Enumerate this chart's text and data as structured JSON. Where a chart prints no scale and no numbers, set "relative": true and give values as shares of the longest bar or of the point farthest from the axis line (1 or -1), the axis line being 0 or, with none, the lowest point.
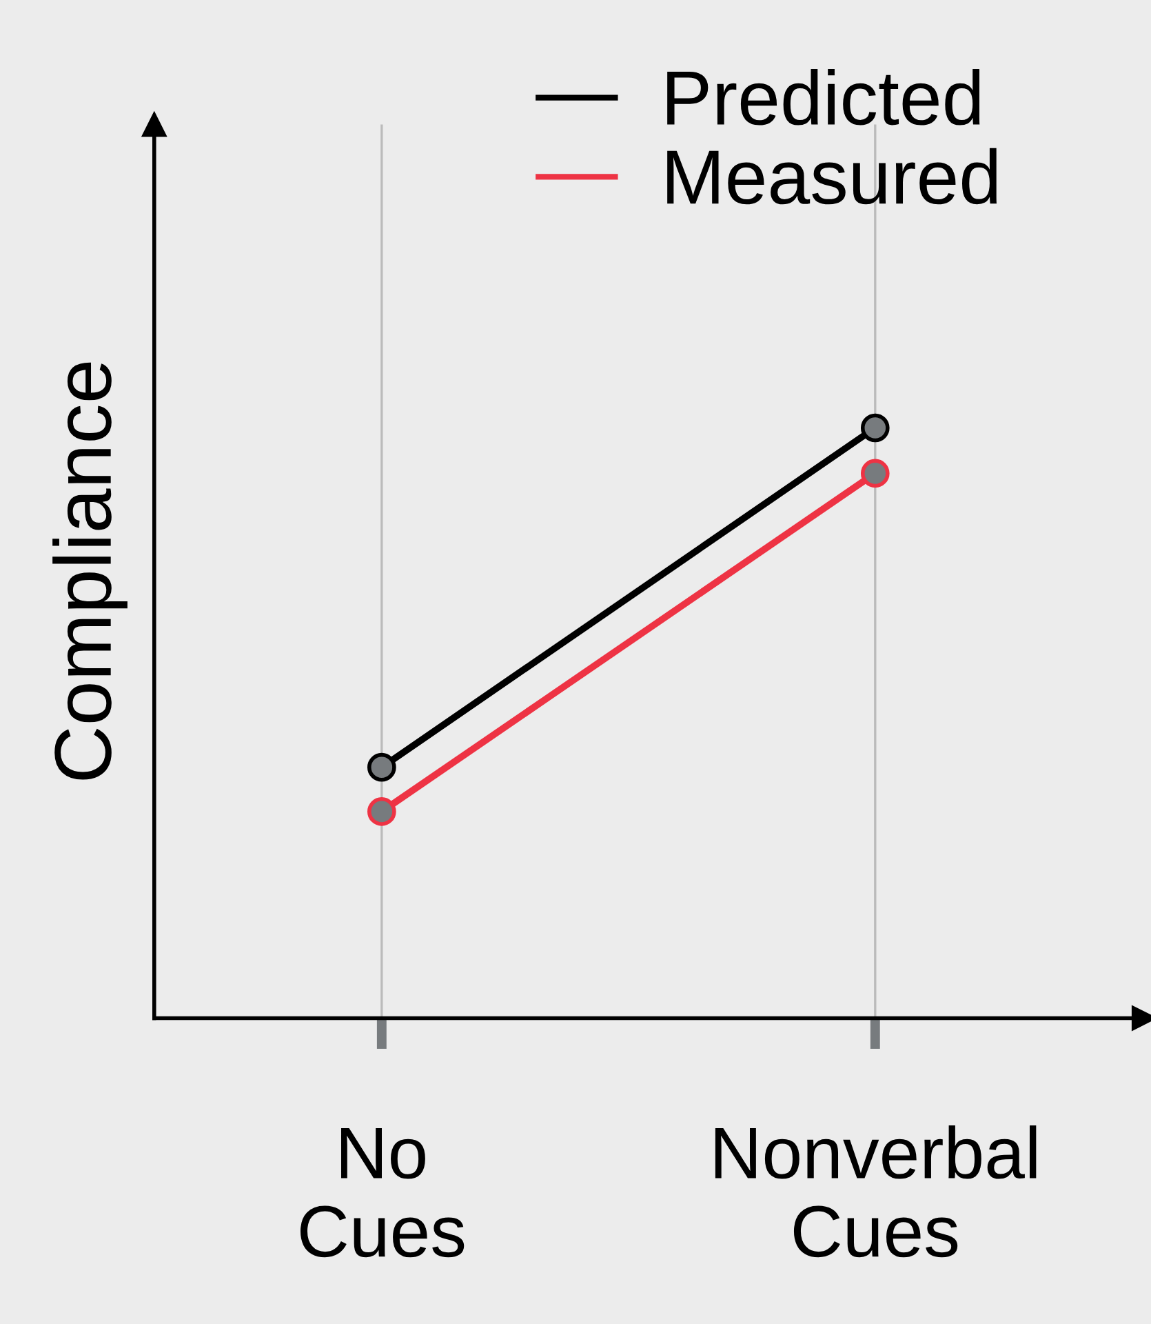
{
  "chart_data": {
    "type": "line",
    "relative": true,
    "ylabel": "Compliance",
    "categories": [
      "No\nCues",
      "Nonverbal\nCues"
    ],
    "series": [
      {
        "name": "Predicted",
        "color": "#000000",
        "values": [
          0.425,
          1
        ]
      },
      {
        "name": "Measured",
        "color": "#ee3344",
        "values": [
          0.35,
          0.923
        ]
      }
    ],
    "marker": "circle",
    "line_style": "solid",
    "grid": "x",
    "legend": "top right"
  }
}
